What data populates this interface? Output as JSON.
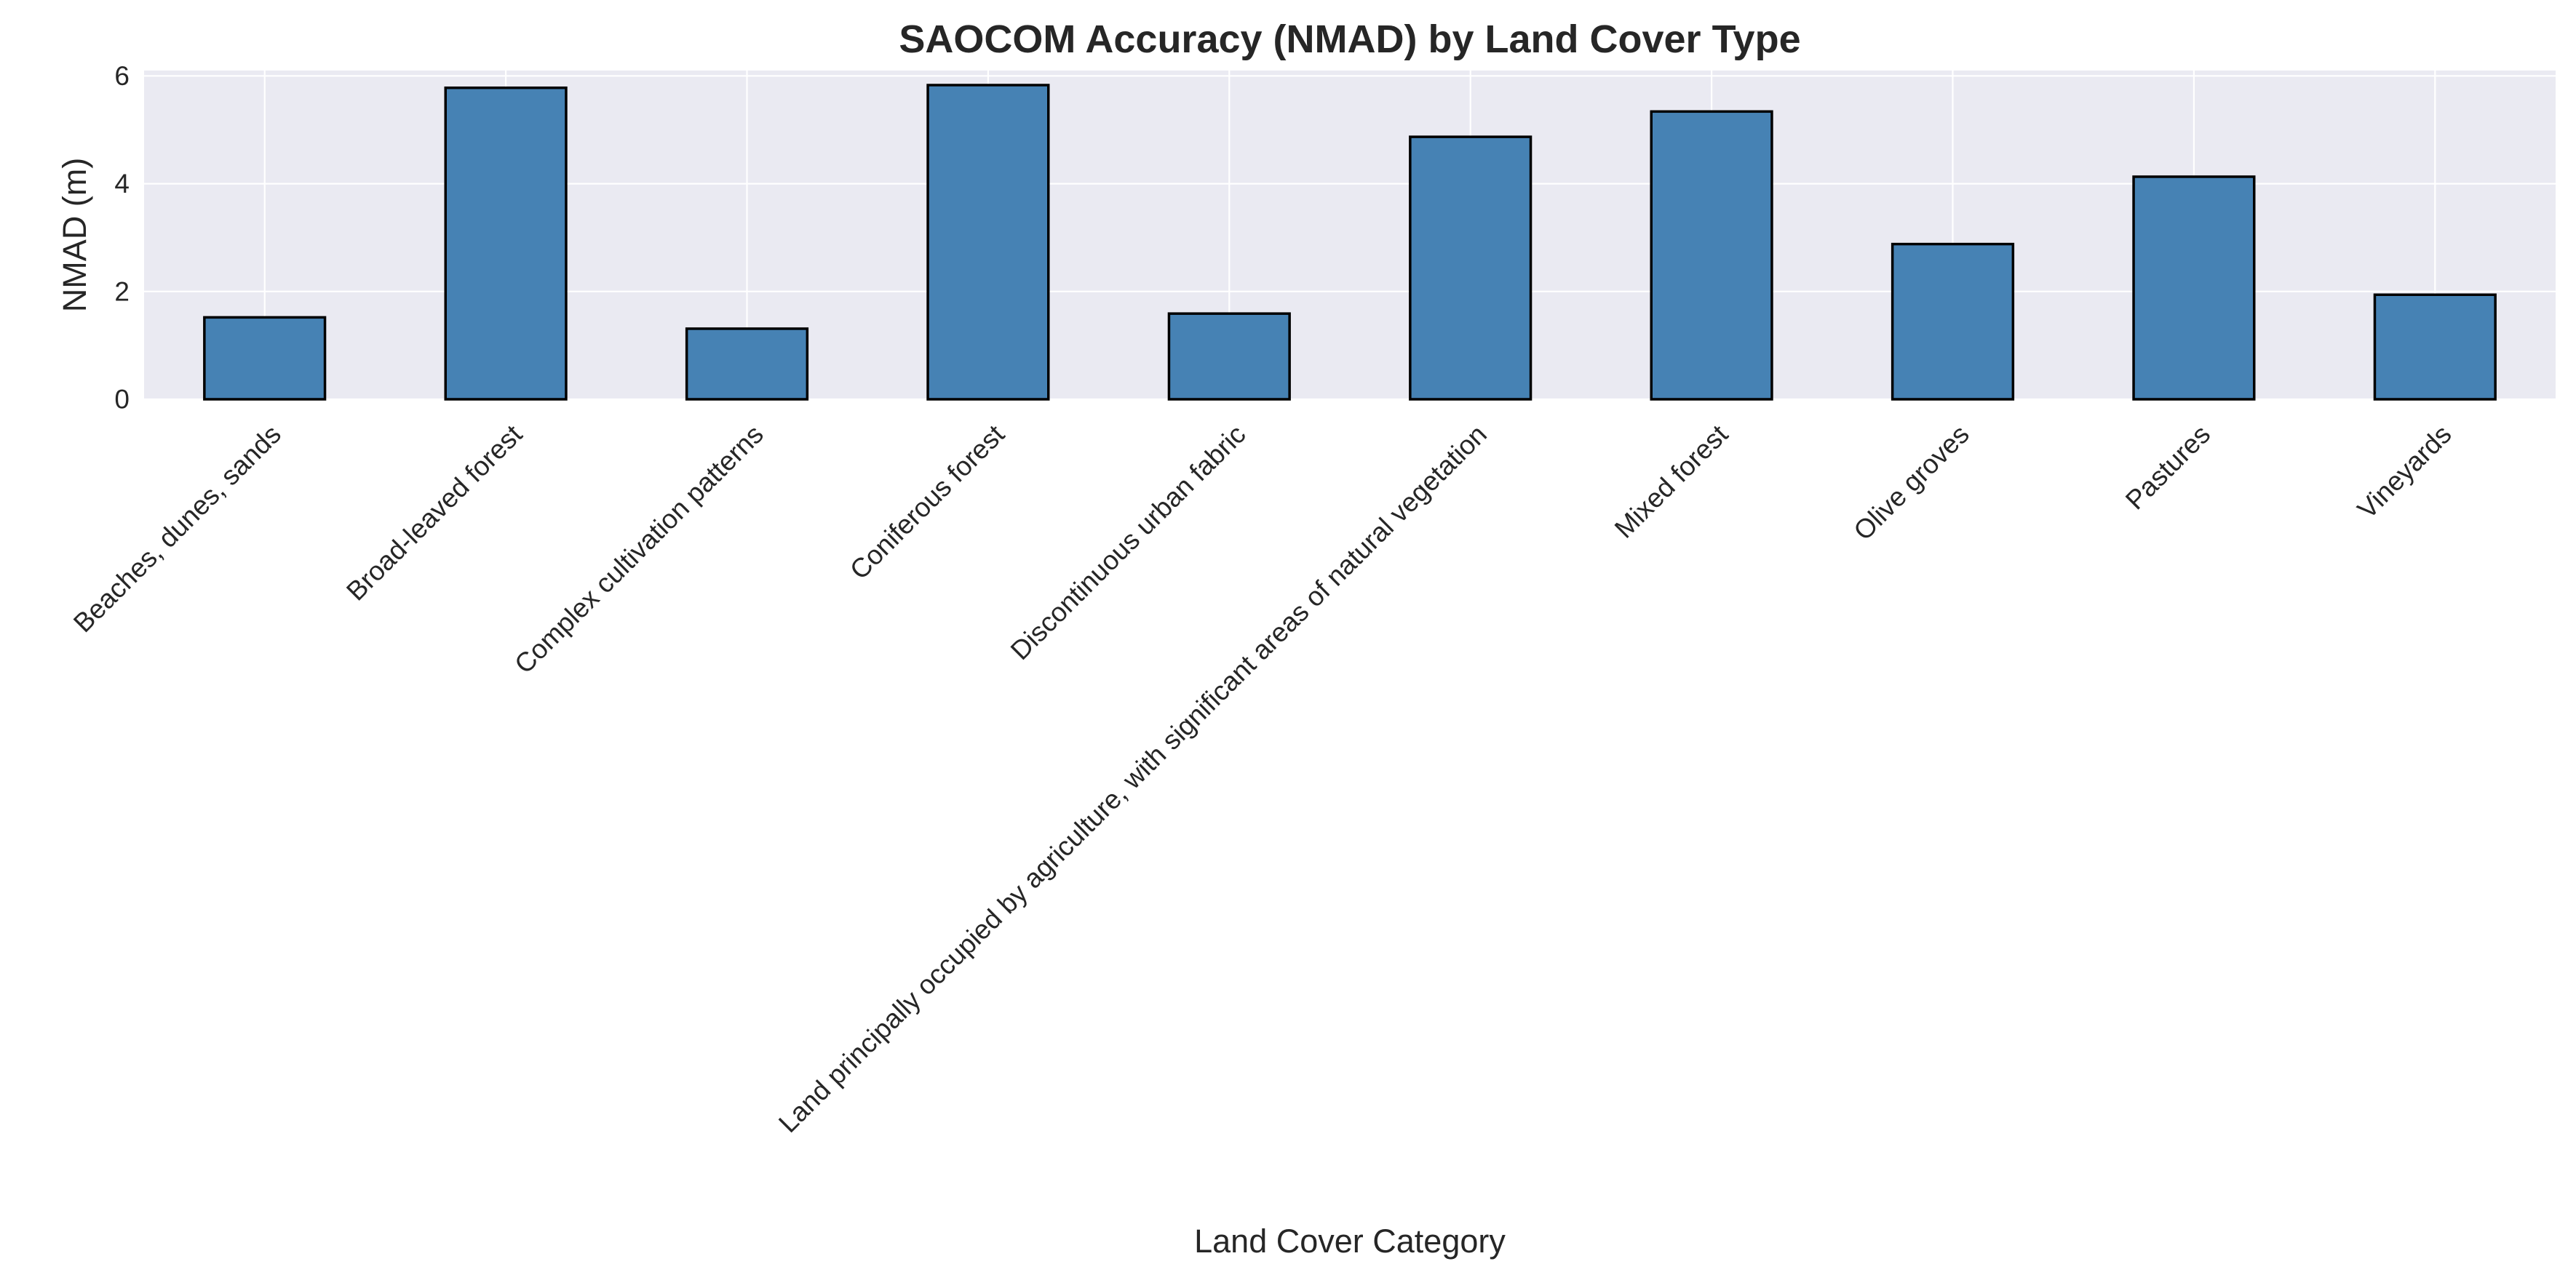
{
  "chart_data": {
    "type": "bar",
    "title": "SAOCOM Accuracy (NMAD) by Land Cover Type",
    "xlabel": "Land Cover Category",
    "ylabel": "NMAD (m)",
    "categories": [
      "Beaches, dunes, sands",
      "Broad-leaved forest",
      "Complex cultivation patterns",
      "Coniferous forest",
      "Discontinuous urban fabric",
      "Land principally occupied by agriculture, with significant areas of natural vegetation",
      "Mixed forest",
      "Olive groves",
      "Pastures",
      "Vineyards"
    ],
    "values": [
      1.52,
      5.78,
      1.31,
      5.83,
      1.59,
      4.87,
      5.34,
      2.88,
      4.13,
      1.94
    ],
    "ylim": [
      0,
      6.1
    ],
    "yticks": [
      0,
      2,
      4,
      6
    ],
    "grid": true,
    "legend": "none",
    "colors": {
      "bar": "#4682b4",
      "bar_edge": "#000000",
      "plot_background": "#eaeaf2",
      "grid": "#ffffff",
      "text": "#262626"
    }
  }
}
